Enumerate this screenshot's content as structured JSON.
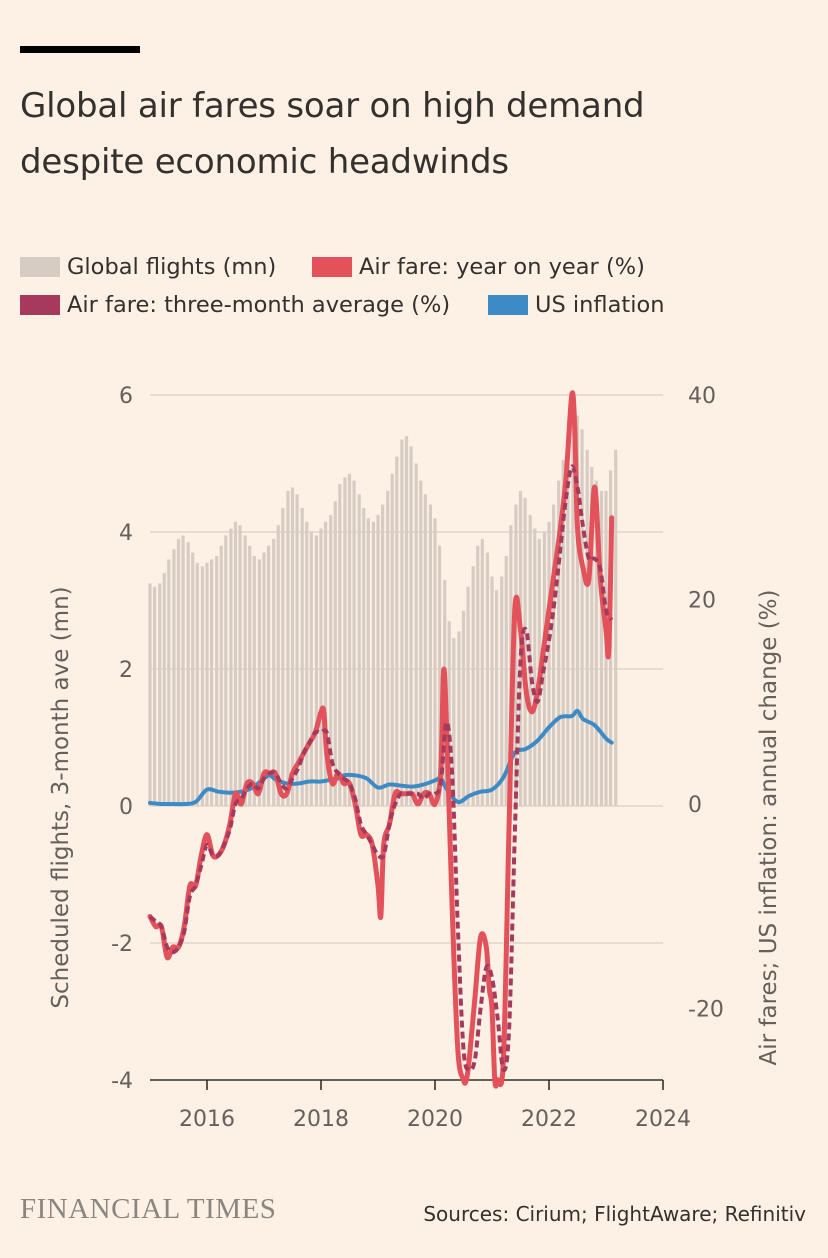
{
  "header": {
    "title_line1": "Global air fares soar on high demand",
    "title_line2": "despite economic headwinds"
  },
  "legend": {
    "items": [
      {
        "label": "Global flights (mn)",
        "color": "#D6CCC4"
      },
      {
        "label": "Air fare: year on year (%)",
        "color": "#E3525A"
      },
      {
        "label": "Air fare: three-month average (%)",
        "color": "#A53A5C"
      },
      {
        "label": "US inflation",
        "color": "#3C8BC7"
      }
    ]
  },
  "footer": {
    "logo": "FINANCIAL TIMES",
    "sources": "Sources: Cirium; FlightAware; Refinitiv"
  },
  "chart_data": {
    "type": "bar+line",
    "left_axis": {
      "label": "Scheduled flights, 3-month ave (mn)",
      "ticks": [
        "6",
        "4",
        "2",
        "0",
        "-2",
        "-4"
      ],
      "range": [
        -4,
        6
      ]
    },
    "right_axis": {
      "label": "Air fares; US inflation: annual change (%)",
      "ticks": [
        "40",
        "20",
        "0",
        "-20"
      ],
      "range": [
        -27,
        40
      ]
    },
    "x_axis": {
      "ticks": [
        "2016",
        "2018",
        "2020",
        "2022",
        "2024"
      ],
      "range": [
        2015.0,
        2024.0
      ]
    },
    "grid": true,
    "flights": {
      "name": "Global flights (mn)",
      "x": [
        2015.0,
        2015.08,
        2015.17,
        2015.25,
        2015.33,
        2015.42,
        2015.5,
        2015.58,
        2015.67,
        2015.75,
        2015.83,
        2015.92,
        2016.0,
        2016.08,
        2016.17,
        2016.25,
        2016.33,
        2016.42,
        2016.5,
        2016.58,
        2016.67,
        2016.75,
        2016.83,
        2016.92,
        2017.0,
        2017.08,
        2017.17,
        2017.25,
        2017.33,
        2017.42,
        2017.5,
        2017.58,
        2017.67,
        2017.75,
        2017.83,
        2017.92,
        2018.0,
        2018.08,
        2018.17,
        2018.25,
        2018.33,
        2018.42,
        2018.5,
        2018.58,
        2018.67,
        2018.75,
        2018.83,
        2018.92,
        2019.0,
        2019.08,
        2019.17,
        2019.25,
        2019.33,
        2019.42,
        2019.5,
        2019.58,
        2019.67,
        2019.75,
        2019.83,
        2019.92,
        2020.0,
        2020.08,
        2020.17,
        2020.25,
        2020.33,
        2020.42,
        2020.5,
        2020.58,
        2020.67,
        2020.75,
        2020.83,
        2020.92,
        2021.0,
        2021.08,
        2021.17,
        2021.25,
        2021.33,
        2021.42,
        2021.5,
        2021.58,
        2021.67,
        2021.75,
        2021.83,
        2021.92,
        2022.0,
        2022.08,
        2022.17,
        2022.25,
        2022.33,
        2022.42,
        2022.5,
        2022.58,
        2022.67,
        2022.75,
        2022.83,
        2022.92,
        2023.0,
        2023.08,
        2023.17
      ],
      "values": [
        3.25,
        3.2,
        3.25,
        3.4,
        3.6,
        3.75,
        3.9,
        3.95,
        3.85,
        3.7,
        3.55,
        3.5,
        3.55,
        3.6,
        3.65,
        3.8,
        3.95,
        4.05,
        4.15,
        4.1,
        3.95,
        3.8,
        3.65,
        3.6,
        3.7,
        3.8,
        3.9,
        4.1,
        4.35,
        4.6,
        4.65,
        4.55,
        4.35,
        4.15,
        4.0,
        3.95,
        4.05,
        4.15,
        4.25,
        4.45,
        4.7,
        4.8,
        4.85,
        4.75,
        4.55,
        4.35,
        4.2,
        4.15,
        4.25,
        4.4,
        4.6,
        4.85,
        5.1,
        5.35,
        5.4,
        5.25,
        5.0,
        4.75,
        4.55,
        4.4,
        4.2,
        3.8,
        3.3,
        2.7,
        2.45,
        2.55,
        2.85,
        3.2,
        3.5,
        3.8,
        3.9,
        3.7,
        3.35,
        3.15,
        3.35,
        3.65,
        4.1,
        4.4,
        4.6,
        4.5,
        4.25,
        4.05,
        3.9,
        4.0,
        4.15,
        4.4,
        4.75,
        5.05,
        5.45,
        5.7,
        5.7,
        5.5,
        5.2,
        4.95,
        4.75,
        4.6,
        4.6,
        4.9,
        5.2
      ]
    },
    "airfare_yoy": {
      "name": "Air fare: year on year (%)",
      "x": [
        2015.0,
        2015.1,
        2015.2,
        2015.3,
        2015.4,
        2015.5,
        2015.6,
        2015.7,
        2015.8,
        2015.9,
        2016.0,
        2016.1,
        2016.2,
        2016.3,
        2016.4,
        2016.5,
        2016.6,
        2016.7,
        2016.8,
        2016.9,
        2017.0,
        2017.1,
        2017.2,
        2017.3,
        2017.4,
        2017.5,
        2017.6,
        2017.7,
        2017.8,
        2017.9,
        2018.0,
        2018.05,
        2018.1,
        2018.2,
        2018.3,
        2018.4,
        2018.5,
        2018.6,
        2018.7,
        2018.8,
        2018.9,
        2019.0,
        2019.05,
        2019.1,
        2019.2,
        2019.3,
        2019.4,
        2019.5,
        2019.6,
        2019.7,
        2019.8,
        2019.9,
        2020.0,
        2020.1,
        2020.15,
        2020.2,
        2020.3,
        2020.4,
        2020.5,
        2020.55,
        2020.6,
        2020.7,
        2020.8,
        2020.9,
        2020.95,
        2021.0,
        2021.05,
        2021.1,
        2021.2,
        2021.3,
        2021.4,
        2021.5,
        2021.6,
        2021.7,
        2021.8,
        2021.9,
        2022.0,
        2022.1,
        2022.2,
        2022.3,
        2022.4,
        2022.45,
        2022.5,
        2022.6,
        2022.7,
        2022.8,
        2022.9,
        2023.0,
        2023.05,
        2023.1
      ],
      "values": [
        -11,
        -12,
        -12,
        -15,
        -14,
        -14,
        -12,
        -8,
        -8,
        -5,
        -3,
        -5,
        -5,
        -4,
        -2,
        1,
        0,
        2,
        2,
        1,
        3,
        3,
        3,
        1,
        1,
        3,
        4,
        5,
        6,
        7,
        9,
        9,
        5,
        2,
        3,
        2,
        2,
        0,
        -3,
        -3,
        -4,
        -8,
        -11,
        -4,
        -2,
        1,
        1,
        1,
        1,
        0,
        1,
        1,
        0,
        3,
        13,
        8,
        -10,
        -24,
        -27,
        -27,
        -25,
        -19,
        -13,
        -14,
        -18,
        -20,
        -27,
        -27,
        -25,
        -2,
        19,
        17,
        11,
        9,
        11,
        15,
        19,
        23,
        27,
        32,
        40,
        37,
        27,
        23,
        22,
        31,
        22,
        17,
        15,
        28
      ]
    },
    "airfare_3m": {
      "name": "Air fare: three-month average (%)",
      "x": [
        2015.0,
        2015.1,
        2015.2,
        2015.3,
        2015.4,
        2015.5,
        2015.6,
        2015.7,
        2015.8,
        2015.9,
        2016.0,
        2016.1,
        2016.2,
        2016.3,
        2016.4,
        2016.5,
        2016.6,
        2016.7,
        2016.8,
        2016.9,
        2017.0,
        2017.1,
        2017.2,
        2017.3,
        2017.4,
        2017.5,
        2017.6,
        2017.7,
        2017.8,
        2017.9,
        2018.0,
        2018.1,
        2018.2,
        2018.3,
        2018.4,
        2018.5,
        2018.6,
        2018.7,
        2018.8,
        2018.9,
        2019.0,
        2019.1,
        2019.2,
        2019.3,
        2019.4,
        2019.5,
        2019.6,
        2019.7,
        2019.8,
        2019.9,
        2020.0,
        2020.1,
        2020.2,
        2020.3,
        2020.4,
        2020.5,
        2020.6,
        2020.7,
        2020.8,
        2020.9,
        2021.0,
        2021.1,
        2021.2,
        2021.3,
        2021.4,
        2021.5,
        2021.6,
        2021.7,
        2021.8,
        2021.9,
        2022.0,
        2022.1,
        2022.2,
        2022.3,
        2022.4,
        2022.5,
        2022.6,
        2022.7,
        2022.8,
        2022.9,
        2023.0,
        2023.1
      ],
      "values": [
        -11,
        -11.5,
        -12,
        -14,
        -14.5,
        -14,
        -12.5,
        -9,
        -8,
        -6,
        -4,
        -5,
        -5,
        -4,
        -2.5,
        0,
        0.5,
        1.5,
        2,
        1.5,
        2.5,
        3,
        3,
        2,
        1.5,
        2.5,
        3.5,
        5,
        6,
        7,
        7,
        7,
        4,
        3,
        2.5,
        2,
        0.5,
        -2,
        -3,
        -4,
        -5,
        -5,
        -2,
        0,
        1,
        1,
        1,
        1,
        0.5,
        1,
        1,
        2,
        8,
        3,
        -12,
        -24,
        -26,
        -25,
        -20,
        -16,
        -17,
        -21,
        -26,
        -22,
        -3,
        14,
        17,
        12,
        10,
        13,
        16,
        20,
        25,
        30,
        33,
        31,
        27,
        24,
        24,
        23,
        19,
        18
      ]
    },
    "us_inflation": {
      "name": "US inflation",
      "x": [
        2015.0,
        2015.2,
        2015.4,
        2015.6,
        2015.8,
        2016.0,
        2016.2,
        2016.4,
        2016.6,
        2016.8,
        2017.0,
        2017.1,
        2017.2,
        2017.4,
        2017.6,
        2017.8,
        2018.0,
        2018.2,
        2018.3,
        2018.4,
        2018.6,
        2018.8,
        2019.0,
        2019.2,
        2019.4,
        2019.6,
        2019.8,
        2020.0,
        2020.1,
        2020.2,
        2020.4,
        2020.6,
        2020.8,
        2021.0,
        2021.2,
        2021.4,
        2021.6,
        2021.8,
        2022.0,
        2022.2,
        2022.4,
        2022.5,
        2022.6,
        2022.8,
        2023.0,
        2023.1
      ],
      "values": [
        0.1,
        0,
        0,
        0,
        0.2,
        1.4,
        1.2,
        1.1,
        1.2,
        1.6,
        2.5,
        2.8,
        2.4,
        2.0,
        2.0,
        2.2,
        2.2,
        2.4,
        2.5,
        2.8,
        2.8,
        2.5,
        1.6,
        1.9,
        1.8,
        1.7,
        1.9,
        2.3,
        2.5,
        1.5,
        0.2,
        0.8,
        1.2,
        1.4,
        2.6,
        5.0,
        5.4,
        6.2,
        7.5,
        8.5,
        8.6,
        9.1,
        8.3,
        7.7,
        6.4,
        6.0
      ]
    }
  }
}
